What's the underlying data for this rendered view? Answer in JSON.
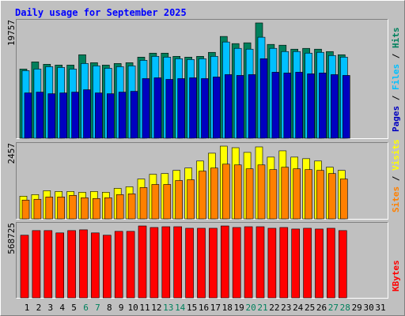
{
  "chart_data": {
    "type": "bar",
    "title": "Daily usage for September 2025",
    "categories": [
      "1",
      "2",
      "3",
      "4",
      "5",
      "6",
      "7",
      "8",
      "9",
      "10",
      "11",
      "12",
      "13",
      "14",
      "15",
      "16",
      "17",
      "18",
      "19",
      "20",
      "21",
      "22",
      "23",
      "24",
      "25",
      "26",
      "27",
      "28",
      "29",
      "30",
      "31"
    ],
    "category_colors": [
      "#000000",
      "#000000",
      "#000000",
      "#000000",
      "#000000",
      "#00805C",
      "#00805C",
      "#000000",
      "#000000",
      "#000000",
      "#000000",
      "#000000",
      "#00805C",
      "#00805C",
      "#000000",
      "#000000",
      "#000000",
      "#000000",
      "#000000",
      "#00805C",
      "#00805C",
      "#000000",
      "#000000",
      "#000000",
      "#000000",
      "#000000",
      "#00805C",
      "#00805C",
      "#000000",
      "#000000",
      "#000000"
    ],
    "legend_separator": " / ",
    "panels": [
      {
        "ylim": [
          0,
          19757
        ],
        "yticks": [
          19757
        ],
        "series": [
          {
            "name": "Hits",
            "color": "#00805C",
            "values": [
              11854,
              13081,
              12672,
              12535,
              12535,
              14307,
              12944,
              12535,
              12808,
              12944,
              13898,
              14579,
              14579,
              14034,
              13898,
              14034,
              14716,
              17441,
              16215,
              16351,
              19757,
              16078,
              15942,
              15261,
              15397,
              15261,
              14852,
              14307,
              null,
              null,
              null
            ]
          },
          {
            "name": "Files",
            "color": "#00C0FF",
            "values": [
              11582,
              11855,
              12263,
              12127,
              11855,
              12808,
              12400,
              11991,
              12263,
              12400,
              13353,
              14035,
              13899,
              13626,
              13490,
              13626,
              14035,
              16487,
              15397,
              15261,
              17305,
              15397,
              14852,
              14852,
              14580,
              14716,
              14171,
              13899,
              null,
              null,
              null
            ]
          },
          {
            "name": "Pages",
            "color": "#0000C0",
            "values": [
              7767,
              7903,
              7631,
              7767,
              7903,
              8312,
              7767,
              7631,
              7903,
              8040,
              10220,
              10356,
              10084,
              10220,
              10356,
              10220,
              10492,
              10901,
              10765,
              10901,
              13626,
              11310,
              11173,
              11310,
              11037,
              11173,
              10901,
              10765,
              null,
              null,
              null
            ]
          }
        ]
      },
      {
        "ylim": [
          0,
          2457
        ],
        "yticks": [
          2457
        ],
        "series": [
          {
            "name": "Visits",
            "color": "#FFFF00",
            "values": [
              766,
              819,
              951,
              925,
              925,
              898,
              925,
              898,
              1030,
              1083,
              1347,
              1506,
              1532,
              1638,
              1717,
              1955,
              2219,
              2457,
              2404,
              2246,
              2431,
              2087,
              2299,
              2087,
              2034,
              1955,
              1744,
              1638,
              null,
              null,
              null
            ]
          },
          {
            "name": "Sites",
            "color": "#FF8000",
            "values": [
              634,
              661,
              740,
              740,
              793,
              713,
              687,
              713,
              819,
              845,
              1057,
              1162,
              1162,
              1295,
              1321,
              1612,
              1717,
              1849,
              1823,
              1691,
              1823,
              1664,
              1744,
              1691,
              1664,
              1638,
              1532,
              1347,
              null,
              null,
              null
            ]
          }
        ]
      },
      {
        "ylim": [
          0,
          568725
        ],
        "yticks": [
          568725
        ],
        "series": [
          {
            "name": "KBytes",
            "color": "#FF0000",
            "values": [
              495339,
              532031,
              532031,
              513685,
              532031,
              538146,
              513685,
              495339,
              525916,
              525916,
              568725,
              556494,
              562609,
              562609,
              550378,
              550378,
              550378,
              568725,
              556494,
              562609,
              562609,
              550378,
              556494,
              544262,
              550378,
              544262,
              550378,
              532031,
              null,
              null,
              null
            ]
          }
        ]
      }
    ]
  }
}
